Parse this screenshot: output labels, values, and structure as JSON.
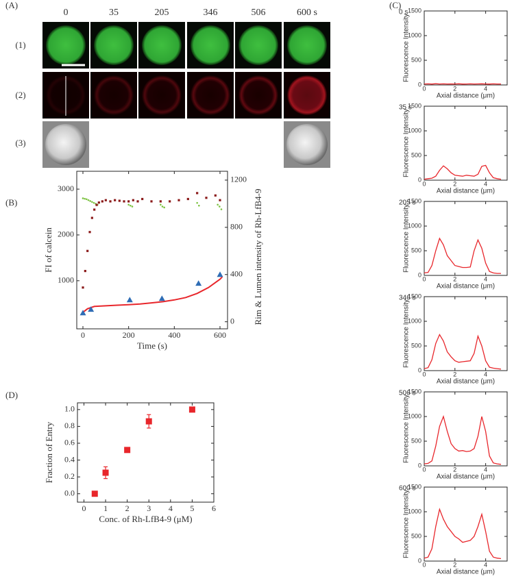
{
  "panel_labels": [
    "(A)",
    "(B)",
    "(C)",
    "(D)"
  ],
  "panel_a": {
    "columns": [
      "0",
      "35",
      "205",
      "346",
      "506",
      "600 s"
    ],
    "rows": [
      "(1)",
      "(2)",
      "(3)"
    ]
  },
  "chart_data": [
    {
      "type": "scatter",
      "xlabel": "Time (s)",
      "ylabel": "FI of calcein",
      "y2label": "Rim & Lumen intensity of Rh-LfB4-9",
      "xlim": [
        -27,
        633
      ],
      "xticks": [
        0,
        200,
        400,
        600
      ],
      "ylim": [
        -50,
        3390
      ],
      "yticks": [
        1000,
        2000,
        3000
      ],
      "y2lim": [
        -60,
        1275
      ],
      "y2ticks": [
        0,
        400,
        800,
        1200
      ],
      "series": [
        {
          "color": "#7dc242",
          "marker": "dot",
          "x": [
            0,
            8,
            16,
            24,
            32,
            40,
            48,
            56,
            64,
            200,
            208,
            216,
            340,
            348,
            356,
            500,
            508,
            590,
            598,
            606
          ],
          "values": [
            2800,
            2790,
            2780,
            2760,
            2740,
            2720,
            2700,
            2680,
            2660,
            2660,
            2640,
            2620,
            2660,
            2620,
            2600,
            2700,
            2640,
            2660,
            2620,
            2560
          ]
        },
        {
          "color": "#8b1a1a",
          "marker": "square",
          "axis": "y2",
          "x": [
            0,
            10,
            20,
            30,
            40,
            50,
            60,
            70,
            85,
            100,
            120,
            140,
            160,
            180,
            200,
            220,
            240,
            260,
            300,
            340,
            380,
            420,
            460,
            500,
            540,
            580,
            600
          ],
          "values": [
            290,
            430,
            600,
            760,
            880,
            950,
            990,
            1010,
            1020,
            1030,
            1020,
            1030,
            1025,
            1020,
            1020,
            1030,
            1020,
            1040,
            1020,
            1020,
            1020,
            1030,
            1040,
            1090,
            1050,
            1070,
            1030
          ]
        },
        {
          "color": "#e8262b",
          "marker": "line",
          "axis": "y2",
          "x": [
            0,
            20,
            50,
            100,
            150,
            200,
            250,
            300,
            350,
            400,
            450,
            500,
            550,
            600,
            610
          ],
          "values": [
            80,
            110,
            130,
            135,
            140,
            145,
            150,
            160,
            170,
            185,
            205,
            240,
            290,
            360,
            380
          ]
        },
        {
          "color": "#2f6db5",
          "marker": "triangle",
          "axis": "y2",
          "x": [
            0,
            35,
            205,
            346,
            506,
            600
          ],
          "values": [
            75,
            105,
            185,
            197,
            325,
            400
          ]
        }
      ]
    },
    {
      "type": "scatter",
      "xlabel": "Conc. of Rh-LfB4-9 (μM)",
      "ylabel": "Fraction of Entry",
      "xlim": [
        -0.3,
        6
      ],
      "xticks": [
        0,
        1,
        2,
        3,
        4,
        5,
        6
      ],
      "ylim": [
        -0.1,
        1.08
      ],
      "yticks": [
        {
          "value": 0,
          "label": "0.0"
        },
        {
          "value": 0.2,
          "label": "0.2"
        },
        {
          "value": 0.4,
          "label": "0.4"
        },
        {
          "value": 0.6,
          "label": "0.6"
        },
        {
          "value": 0.8,
          "label": "0.8"
        },
        {
          "value": 1,
          "label": "1.0"
        }
      ],
      "x": [
        0.5,
        1,
        2,
        3,
        5
      ],
      "series": [
        {
          "color": "#e8262b",
          "marker": "square",
          "values": [
            0,
            0.25,
            0.52,
            0.86,
            1.0
          ],
          "errors": [
            0.02,
            0.07,
            0.02,
            0.08,
            0.01
          ]
        }
      ]
    },
    {
      "type": "line",
      "title": "0 s",
      "xlabel": "Axial distance (μm)",
      "ylabel": "Fluorescence Intensity",
      "xlim": [
        0,
        5.4
      ],
      "xticks": [
        0,
        2,
        4
      ],
      "ylim": [
        0,
        1500
      ],
      "yticks": [
        0,
        500,
        1000,
        1500
      ],
      "x": [
        0,
        0.25,
        0.5,
        0.75,
        1,
        1.25,
        1.5,
        1.75,
        2,
        2.25,
        2.5,
        2.75,
        3,
        3.25,
        3.5,
        3.75,
        4,
        4.25,
        4.5,
        4.75,
        5
      ],
      "series": [
        {
          "color": "#e8262b",
          "values": [
            20,
            22,
            18,
            25,
            20,
            22,
            19,
            21,
            20,
            23,
            18,
            20,
            22,
            19,
            21,
            24,
            20,
            18,
            22,
            20,
            19
          ]
        }
      ]
    },
    {
      "type": "line",
      "title": "35 s",
      "xlabel": "Axial distance (μm)",
      "ylabel": "Fluorescence Intensity",
      "xlim": [
        0,
        5.4
      ],
      "xticks": [
        0,
        2,
        4
      ],
      "ylim": [
        0,
        1500
      ],
      "yticks": [
        0,
        500,
        1000,
        1500
      ],
      "x": [
        0,
        0.25,
        0.5,
        0.75,
        1,
        1.25,
        1.5,
        1.75,
        2,
        2.25,
        2.5,
        2.75,
        3,
        3.25,
        3.5,
        3.75,
        4,
        4.25,
        4.5,
        4.75,
        5
      ],
      "series": [
        {
          "color": "#e8262b",
          "values": [
            20,
            30,
            40,
            80,
            200,
            290,
            230,
            150,
            100,
            90,
            80,
            100,
            90,
            80,
            120,
            280,
            300,
            150,
            50,
            30,
            20
          ]
        }
      ]
    },
    {
      "type": "line",
      "title": "205 s",
      "xlabel": "Axial distance (μm)",
      "ylabel": "Fluorescence Intensity",
      "xlim": [
        0,
        5.4
      ],
      "xticks": [
        0,
        2,
        4
      ],
      "ylim": [
        0,
        1500
      ],
      "yticks": [
        0,
        500,
        1000,
        1500
      ],
      "x": [
        0,
        0.25,
        0.5,
        0.75,
        1,
        1.25,
        1.5,
        1.75,
        2,
        2.25,
        2.5,
        2.75,
        3,
        3.25,
        3.5,
        3.75,
        4,
        4.25,
        4.5,
        4.75,
        5
      ],
      "series": [
        {
          "color": "#e8262b",
          "values": [
            50,
            60,
            200,
            500,
            750,
            620,
            400,
            300,
            200,
            180,
            160,
            160,
            170,
            500,
            720,
            550,
            250,
            80,
            50,
            40,
            40
          ]
        }
      ]
    },
    {
      "type": "line",
      "title": "346 s",
      "xlabel": "Axial distance (μm)",
      "ylabel": "Fluorescence Intensity",
      "xlim": [
        0,
        5.4
      ],
      "xticks": [
        0,
        2,
        4
      ],
      "ylim": [
        0,
        1500
      ],
      "yticks": [
        0,
        500,
        1000,
        1500
      ],
      "x": [
        0,
        0.25,
        0.5,
        0.75,
        1,
        1.25,
        1.5,
        1.75,
        2,
        2.25,
        2.5,
        2.75,
        3,
        3.25,
        3.5,
        3.75,
        4,
        4.25,
        4.5,
        4.75,
        5
      ],
      "series": [
        {
          "color": "#e8262b",
          "values": [
            40,
            60,
            220,
            550,
            730,
            600,
            380,
            280,
            200,
            170,
            180,
            190,
            200,
            350,
            700,
            500,
            200,
            70,
            50,
            40,
            30
          ]
        }
      ]
    },
    {
      "type": "line",
      "title": "506 s",
      "xlabel": "Axial distance (μm)",
      "ylabel": "Fluorescence Intensity",
      "xlim": [
        0,
        5.4
      ],
      "xticks": [
        0,
        2,
        4
      ],
      "ylim": [
        0,
        1500
      ],
      "yticks": [
        0,
        500,
        1000,
        1500
      ],
      "x": [
        0,
        0.25,
        0.5,
        0.75,
        1,
        1.25,
        1.5,
        1.75,
        2,
        2.25,
        2.5,
        2.75,
        3,
        3.25,
        3.5,
        3.75,
        4,
        4.25,
        4.5,
        4.75,
        5
      ],
      "series": [
        {
          "color": "#e8262b",
          "values": [
            40,
            50,
            100,
            400,
            800,
            1000,
            700,
            450,
            350,
            300,
            310,
            290,
            300,
            350,
            600,
            1000,
            700,
            200,
            60,
            40,
            30
          ]
        }
      ]
    },
    {
      "type": "line",
      "title": "600 s",
      "xlabel": "Axial distance (μm)",
      "ylabel": "Fluorescence Intensity",
      "xlim": [
        0,
        5.4
      ],
      "xticks": [
        0,
        2,
        4
      ],
      "ylim": [
        0,
        1500
      ],
      "yticks": [
        0,
        500,
        1000,
        1500
      ],
      "x": [
        0,
        0.25,
        0.5,
        0.75,
        1,
        1.25,
        1.5,
        1.75,
        2,
        2.25,
        2.5,
        2.75,
        3,
        3.25,
        3.5,
        3.75,
        4,
        4.25,
        4.5,
        4.75,
        5
      ],
      "series": [
        {
          "color": "#e8262b",
          "values": [
            60,
            80,
            250,
            700,
            1050,
            850,
            700,
            600,
            500,
            450,
            380,
            400,
            420,
            500,
            700,
            950,
            600,
            200,
            80,
            60,
            50
          ]
        }
      ]
    }
  ]
}
